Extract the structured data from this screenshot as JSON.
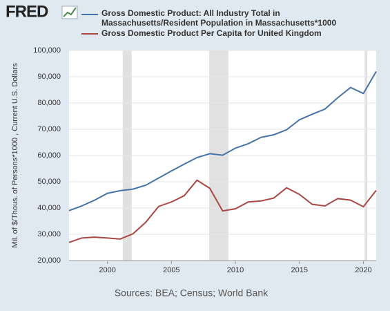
{
  "chart_data": {
    "type": "line",
    "logo": "FRED",
    "ylabel": "Mil. of $/Thous. of Persons*1000 , Current U.S. Dollars",
    "source": "Sources: BEA; Census; World Bank",
    "x": [
      1997,
      1998,
      1999,
      2000,
      2001,
      2002,
      2003,
      2004,
      2005,
      2006,
      2007,
      2008,
      2009,
      2010,
      2011,
      2012,
      2013,
      2014,
      2015,
      2016,
      2017,
      2018,
      2019,
      2020,
      2021
    ],
    "series": [
      {
        "name": "Gross Domestic Product: All Industry Total in Massachusetts/Resident Population in Massachusetts*1000",
        "color": "#4572a7",
        "values": [
          39000,
          40800,
          43000,
          45600,
          46600,
          47200,
          48700,
          51400,
          54100,
          56700,
          59200,
          60700,
          60100,
          62800,
          64500,
          66900,
          67900,
          69800,
          73600,
          75700,
          77700,
          82000,
          85900,
          83600,
          92000
        ]
      },
      {
        "name": "Gross Domestic Product Per Capita for United Kingdom",
        "color": "#aa4643",
        "values": [
          26900,
          28600,
          28900,
          28600,
          28200,
          30200,
          34600,
          40600,
          42300,
          44700,
          50600,
          47500,
          38900,
          39700,
          42300,
          42700,
          43800,
          47700,
          45200,
          41400,
          40800,
          43600,
          43000,
          40500,
          46700
        ]
      }
    ],
    "recessions": [
      [
        2001.2,
        2001.9
      ],
      [
        2007.95,
        2009.45
      ],
      [
        2020.1,
        2020.3
      ]
    ],
    "xlim": [
      1997,
      2021
    ],
    "xticks": [
      2000,
      2005,
      2010,
      2015,
      2020
    ],
    "ylim": [
      20000,
      100000
    ],
    "yticks": [
      {
        "value": 20000,
        "label": "20,000"
      },
      {
        "value": 30000,
        "label": "30,000"
      },
      {
        "value": 40000,
        "label": "40,000"
      },
      {
        "value": 50000,
        "label": "50,000"
      },
      {
        "value": 60000,
        "label": "60,000"
      },
      {
        "value": 70000,
        "label": "70,000"
      },
      {
        "value": 80000,
        "label": "80,000"
      },
      {
        "value": 90000,
        "label": "90,000"
      },
      {
        "value": 100000,
        "label": "100,000"
      }
    ],
    "grid": true
  }
}
